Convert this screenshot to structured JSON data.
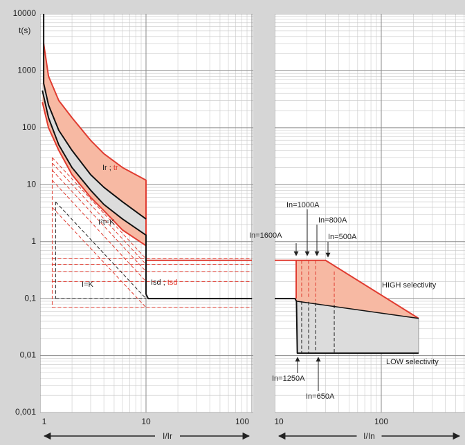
{
  "chart_data": [
    {
      "type": "line",
      "xlog": true,
      "ylog": true,
      "grid": true,
      "ylabel": "t(s)",
      "xlabel": "I/Ir",
      "xlim": [
        1,
        100
      ],
      "ylim": [
        0.001,
        10000
      ],
      "xticks": [
        1,
        10,
        100
      ],
      "yticks": [
        10000,
        1000,
        100,
        10,
        1,
        {
          "value": 0.1,
          "label": "0,1"
        },
        {
          "value": 0.01,
          "label": "0,01"
        },
        {
          "value": 0.001,
          "label": "0,001"
        }
      ],
      "areas": [
        {
          "color": "#f7b9a3",
          "x": [
            1.08,
            1.2,
            1.5,
            2,
            3,
            4,
            6,
            10,
            10,
            6,
            4,
            3,
            2,
            1.5,
            1.2,
            1.05
          ],
          "values": [
            3000,
            800,
            300,
            150,
            60,
            35,
            20,
            12,
            0.85,
            1.6,
            3.5,
            6,
            15,
            40,
            100,
            280
          ]
        },
        {
          "color": "#dcdcdc",
          "x": [
            1.05,
            1.2,
            1.5,
            2,
            3,
            4,
            6,
            10,
            10,
            6,
            4,
            3,
            2,
            1.5,
            1.2,
            1.05
          ],
          "values": [
            600,
            250,
            90,
            40,
            15,
            9,
            5,
            2.5,
            1.3,
            2.5,
            4.5,
            8,
            20,
            50,
            150,
            450
          ]
        }
      ],
      "series": [
        {
          "color": "#e03c31",
          "width": 1,
          "dash": true,
          "x": [
            1.3,
            100
          ],
          "values": [
            0.5,
            0.5
          ]
        },
        {
          "color": "#e03c31",
          "width": 1,
          "dash": true,
          "x": [
            1.3,
            100
          ],
          "values": [
            0.4,
            0.4
          ]
        },
        {
          "color": "#e03c31",
          "width": 1,
          "dash": true,
          "x": [
            1.3,
            100
          ],
          "values": [
            0.3,
            0.3
          ]
        },
        {
          "color": "#e03c31",
          "width": 1,
          "dash": true,
          "x": [
            1.3,
            100
          ],
          "values": [
            0.2,
            0.2
          ]
        },
        {
          "color": "#e03c31",
          "width": 1,
          "dash": true,
          "x": [
            1.3,
            100
          ],
          "values": [
            0.07,
            0.07
          ]
        },
        {
          "color": "#e03c31",
          "width": 1,
          "dash": true,
          "x": [
            1.3,
            1.3
          ],
          "values": [
            30,
            0.07
          ]
        },
        {
          "color": "#e03c31",
          "width": 1,
          "dash": true,
          "x": [
            1.3,
            10
          ],
          "values": [
            30,
            0.5
          ]
        },
        {
          "color": "#e03c31",
          "width": 1,
          "dash": true,
          "x": [
            1.3,
            10
          ],
          "values": [
            24,
            0.4
          ]
        },
        {
          "color": "#e03c31",
          "width": 1,
          "dash": true,
          "x": [
            1.3,
            10
          ],
          "values": [
            18,
            0.3
          ]
        },
        {
          "color": "#e03c31",
          "width": 1,
          "dash": true,
          "x": [
            1.3,
            10
          ],
          "values": [
            12,
            0.2
          ]
        },
        {
          "color": "#e03c31",
          "width": 1,
          "dash": true,
          "x": [
            1.3,
            10
          ],
          "values": [
            4,
            0.07
          ]
        },
        {
          "color": "#222222",
          "width": 1,
          "dash": true,
          "x": [
            1.4,
            1.4
          ],
          "values": [
            5,
            0.1
          ]
        },
        {
          "color": "#222222",
          "width": 1,
          "dash": true,
          "x": [
            1.4,
            10
          ],
          "values": [
            5,
            0.1
          ]
        },
        {
          "color": "#222222",
          "width": 1,
          "dash": true,
          "x": [
            1.4,
            10
          ],
          "values": [
            0.1,
            0.1
          ]
        },
        {
          "color": "#e03c31",
          "width": 2,
          "x": [
            1.08,
            1.2,
            1.5,
            2,
            3,
            4,
            6,
            10,
            10,
            100
          ],
          "values": [
            3000,
            800,
            300,
            150,
            60,
            35,
            20,
            12,
            0.47,
            0.47
          ]
        },
        {
          "color": "#e03c31",
          "width": 2,
          "x": [
            1.05,
            1.2,
            1.5,
            2,
            3,
            4,
            6,
            10
          ],
          "values": [
            280,
            100,
            40,
            15,
            6,
            3.5,
            1.6,
            0.85
          ]
        },
        {
          "color": "#111111",
          "width": 2,
          "x": [
            1.08,
            1.08,
            1.2,
            1.5,
            2,
            3,
            4,
            6,
            10
          ],
          "values": [
            10000,
            600,
            250,
            90,
            40,
            15,
            9,
            5,
            2.5
          ]
        },
        {
          "color": "#111111",
          "width": 2,
          "x": [
            1.05,
            1.2,
            1.5,
            2,
            3,
            4,
            6,
            10,
            10,
            10.5,
            100
          ],
          "values": [
            450,
            150,
            50,
            20,
            8,
            4.5,
            2.5,
            1.3,
            0.12,
            0.1,
            0.1
          ]
        }
      ],
      "annotations": [
        {
          "parts": [
            {
              "text": "Ir ; ",
              "color": "#222222"
            },
            {
              "text": "tr",
              "color": "#e03c31"
            }
          ]
        },
        {
          "parts": [
            {
              "text": "I²t=K",
              "color": "#222222"
            }
          ]
        },
        {
          "parts": [
            {
              "text": "I=K",
              "color": "#222222"
            }
          ]
        },
        {
          "parts": [
            {
              "text": "Isd ; ",
              "color": "#222222"
            },
            {
              "text": "tsd",
              "color": "#e03c31"
            }
          ]
        }
      ]
    },
    {
      "type": "line",
      "xlog": true,
      "ylog": true,
      "grid": true,
      "xlabel": "I/In",
      "xlim": [
        10,
        600
      ],
      "ylim": [
        0.001,
        10000
      ],
      "xticks": [
        10,
        100
      ],
      "areas": [
        {
          "color": "#f7b9a3",
          "x": [
            15.9,
            30,
            224,
            16
          ],
          "values": [
            0.47,
            0.47,
            0.045,
            0.09
          ]
        },
        {
          "color": "#dcdcdc",
          "x": [
            16,
            224,
            224,
            16.3
          ],
          "values": [
            0.09,
            0.045,
            0.011,
            0.011
          ]
        }
      ],
      "series": [
        {
          "color": "#e03c31",
          "width": 1,
          "dash": true,
          "x": [
            17.9,
            17.9
          ],
          "values": [
            0.47,
            0.1
          ]
        },
        {
          "color": "#e03c31",
          "width": 1,
          "dash": true,
          "x": [
            20.8,
            20.8
          ],
          "values": [
            0.47,
            0.1
          ]
        },
        {
          "color": "#e03c31",
          "width": 1,
          "dash": true,
          "x": [
            24.2,
            24.2
          ],
          "values": [
            0.47,
            0.09
          ]
        },
        {
          "color": "#e03c31",
          "width": 1,
          "dash": true,
          "x": [
            36.2,
            36.2
          ],
          "values": [
            0.3,
            0.08
          ]
        },
        {
          "color": "#222222",
          "width": 1,
          "dash": true,
          "x": [
            17.9,
            17.9
          ],
          "values": [
            0.09,
            0.011
          ]
        },
        {
          "color": "#222222",
          "width": 1,
          "dash": true,
          "x": [
            20.8,
            20.8
          ],
          "values": [
            0.088,
            0.011
          ]
        },
        {
          "color": "#222222",
          "width": 1,
          "dash": true,
          "x": [
            24.2,
            24.2
          ],
          "values": [
            0.085,
            0.011
          ]
        },
        {
          "color": "#222222",
          "width": 1,
          "dash": true,
          "x": [
            36.2,
            36.2
          ],
          "values": [
            0.078,
            0.011
          ]
        },
        {
          "color": "#999999",
          "width": 1,
          "x": [
            224,
            224
          ],
          "values": [
            0.045,
            0.011
          ]
        },
        {
          "color": "#e03c31",
          "width": 2,
          "x": [
            10,
            30,
            224
          ],
          "values": [
            0.47,
            0.47,
            0.045
          ]
        },
        {
          "color": "#e03c31",
          "width": 2,
          "x": [
            15.9,
            15.9
          ],
          "values": [
            0.47,
            0.1
          ]
        },
        {
          "color": "#111111",
          "width": 1.5,
          "x": [
            16,
            224
          ],
          "values": [
            0.09,
            0.045
          ]
        },
        {
          "color": "#111111",
          "width": 2,
          "x": [
            10,
            15.5,
            16,
            16.3,
            224
          ],
          "values": [
            0.1,
            0.1,
            0.09,
            0.011,
            0.011
          ]
        }
      ],
      "annotations": [
        {
          "parts": [
            {
              "text": "In=1600A",
              "color": "#222222"
            }
          ]
        },
        {
          "parts": [
            {
              "text": "In=1000A",
              "color": "#222222"
            }
          ]
        },
        {
          "parts": [
            {
              "text": "In=800A",
              "color": "#222222"
            }
          ]
        },
        {
          "parts": [
            {
              "text": "In=500A",
              "color": "#222222"
            }
          ]
        },
        {
          "parts": [
            {
              "text": "HIGH selectivity",
              "color": "#222222"
            }
          ]
        },
        {
          "parts": [
            {
              "text": "LOW selectivity",
              "color": "#222222"
            }
          ]
        },
        {
          "parts": [
            {
              "text": "In=1250A",
              "color": "#222222"
            }
          ]
        },
        {
          "parts": [
            {
              "text": "In=650A",
              "color": "#222222"
            }
          ]
        }
      ]
    }
  ]
}
